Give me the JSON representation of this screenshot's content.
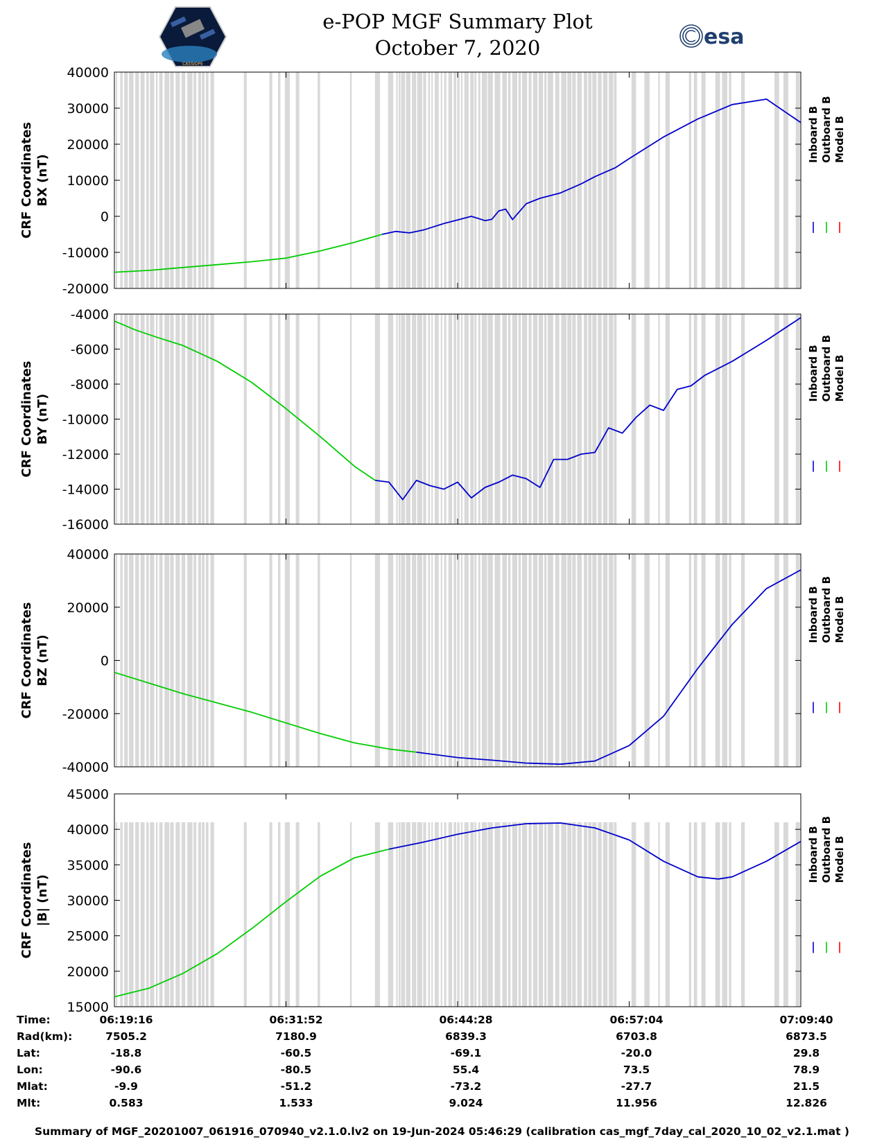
{
  "header": {
    "title_line1": "e-POP MGF Summary Plot",
    "title_line2": "October 7, 2020",
    "left_logo_text": "CASSIOPE",
    "right_logo_text": "esa"
  },
  "colors": {
    "inboard": "#0000cc",
    "outboard": "#00cc00",
    "model": "#ff0000",
    "gap_band": "#d9d9d9"
  },
  "chart_data": [
    {
      "type": "line",
      "ylabel_line1": "CRF Coordinates",
      "ylabel_line2": "BX (nT)",
      "ylim": [
        -20000,
        40000
      ],
      "yticks": [
        40000,
        30000,
        20000,
        10000,
        0,
        -10000,
        -20000
      ],
      "ytick_labels": [
        "40000",
        "30000",
        "20000",
        "10000",
        "0",
        "-10000",
        "-20000"
      ],
      "legend": [
        "Inboard B",
        "Outboard B",
        "Model B"
      ],
      "series": [
        {
          "name": "Outboard B",
          "color": "outboard",
          "t": [
            0,
            0.05,
            0.1,
            0.15,
            0.2,
            0.25,
            0.3,
            0.35,
            0.39
          ],
          "values": [
            -15500,
            -15000,
            -14200,
            -13400,
            -12600,
            -11600,
            -9600,
            -7200,
            -5000
          ]
        },
        {
          "name": "Inboard B",
          "color": "inboard",
          "t": [
            0.39,
            0.41,
            0.43,
            0.45,
            0.48,
            0.5,
            0.52,
            0.54,
            0.55,
            0.56,
            0.57,
            0.58,
            0.6,
            0.62,
            0.65,
            0.68,
            0.7,
            0.73,
            0.75,
            0.8,
            0.85,
            0.9,
            0.95,
            1.0
          ],
          "values": [
            -5000,
            -4200,
            -4600,
            -3800,
            -2000,
            -1000,
            0,
            -1200,
            -800,
            1500,
            2000,
            -900,
            3500,
            5000,
            6500,
            9000,
            11000,
            13500,
            16000,
            22000,
            27000,
            31000,
            32500,
            26000
          ]
        }
      ]
    },
    {
      "type": "line",
      "ylabel_line1": "CRF Coordinates",
      "ylabel_line2": "BY (nT)",
      "ylim": [
        -16000,
        -4000
      ],
      "yticks": [
        -4000,
        -6000,
        -8000,
        -10000,
        -12000,
        -14000,
        -16000
      ],
      "ytick_labels": [
        "-4000",
        "-6000",
        "-8000",
        "-10000",
        "-12000",
        "-14000",
        "-16000"
      ],
      "legend": [
        "Inboard B",
        "Outboard B",
        "Model B"
      ],
      "series": [
        {
          "name": "Outboard B",
          "color": "outboard",
          "t": [
            0,
            0.03,
            0.06,
            0.1,
            0.15,
            0.2,
            0.25,
            0.3,
            0.35,
            0.38
          ],
          "values": [
            -4400,
            -4900,
            -5300,
            -5800,
            -6700,
            -7900,
            -9400,
            -11000,
            -12700,
            -13500
          ]
        },
        {
          "name": "Inboard B",
          "color": "inboard",
          "t": [
            0.38,
            0.4,
            0.42,
            0.44,
            0.46,
            0.48,
            0.5,
            0.52,
            0.54,
            0.56,
            0.58,
            0.6,
            0.62,
            0.64,
            0.66,
            0.68,
            0.7,
            0.72,
            0.74,
            0.76,
            0.78,
            0.8,
            0.82,
            0.84,
            0.86,
            0.9,
            0.95,
            1.0
          ],
          "values": [
            -13500,
            -13600,
            -14600,
            -13500,
            -13800,
            -14000,
            -13600,
            -14500,
            -13900,
            -13600,
            -13200,
            -13400,
            -13900,
            -12300,
            -12300,
            -12000,
            -11900,
            -10500,
            -10800,
            -9900,
            -9200,
            -9500,
            -8300,
            -8100,
            -7500,
            -6700,
            -5500,
            -4200
          ]
        }
      ]
    },
    {
      "type": "line",
      "ylabel_line1": "CRF Coordinates",
      "ylabel_line2": "BZ (nT)",
      "ylim": [
        -40000,
        40000
      ],
      "yticks": [
        40000,
        20000,
        0,
        -20000,
        -40000
      ],
      "ytick_labels": [
        "40000",
        "20000",
        "0",
        "-20000",
        "-40000"
      ],
      "legend": [
        "Inboard B",
        "Outboard B",
        "Model B"
      ],
      "series": [
        {
          "name": "Outboard B",
          "color": "outboard",
          "t": [
            0,
            0.05,
            0.1,
            0.15,
            0.2,
            0.25,
            0.3,
            0.35,
            0.4,
            0.44
          ],
          "values": [
            -4500,
            -8500,
            -12500,
            -16000,
            -19500,
            -23500,
            -27500,
            -31000,
            -33300,
            -34500
          ]
        },
        {
          "name": "Inboard B",
          "color": "inboard",
          "t": [
            0.44,
            0.5,
            0.55,
            0.6,
            0.65,
            0.7,
            0.75,
            0.8,
            0.85,
            0.9,
            0.95,
            1.0
          ],
          "values": [
            -34500,
            -36500,
            -37500,
            -38600,
            -39000,
            -37800,
            -32000,
            -21000,
            -3000,
            13500,
            27000,
            34000
          ]
        }
      ]
    },
    {
      "type": "line",
      "ylabel_line1": "CRF Coordinates",
      "ylabel_line2": "|B| (nT)",
      "ylim": [
        15000,
        45000
      ],
      "yticks": [
        45000,
        40000,
        35000,
        30000,
        25000,
        20000,
        15000
      ],
      "ytick_labels": [
        "45000",
        "40000",
        "35000",
        "30000",
        "25000",
        "20000",
        "15000"
      ],
      "legend": [
        "Inboard B",
        "Outboard B",
        "Model B"
      ],
      "series": [
        {
          "name": "Outboard B",
          "color": "outboard",
          "t": [
            0,
            0.05,
            0.1,
            0.15,
            0.2,
            0.25,
            0.3,
            0.35,
            0.4
          ],
          "values": [
            16400,
            17600,
            19700,
            22500,
            26000,
            29800,
            33400,
            36000,
            37200
          ]
        },
        {
          "name": "Inboard B",
          "color": "inboard",
          "t": [
            0.4,
            0.45,
            0.5,
            0.55,
            0.6,
            0.65,
            0.7,
            0.75,
            0.8,
            0.85,
            0.88,
            0.9,
            0.95,
            1.0
          ],
          "values": [
            37200,
            38200,
            39300,
            40200,
            40800,
            40900,
            40200,
            38500,
            35500,
            33300,
            33000,
            33300,
            35500,
            38300
          ]
        }
      ]
    }
  ],
  "footer": {
    "labels": [
      "Time:",
      "Rad(km):",
      "Lat:",
      "Lon:",
      "Mlat:",
      "Mlt:"
    ],
    "columns": [
      [
        "06:19:16",
        "7505.2",
        "-18.8",
        "-90.6",
        "-9.9",
        "0.583"
      ],
      [
        "06:31:52",
        "7180.9",
        "-60.5",
        "-80.5",
        "-51.2",
        "1.533"
      ],
      [
        "06:44:28",
        "6839.3",
        "-69.1",
        "55.4",
        "-73.2",
        "9.024"
      ],
      [
        "06:57:04",
        "6703.8",
        "-20.0",
        "73.5",
        "-27.7",
        "11.956"
      ],
      [
        "07:09:40",
        "6873.5",
        "29.8",
        "78.9",
        "21.5",
        "12.826"
      ]
    ],
    "caption": "Summary of MGF_20201007_061916_070940_v2.1.0.lv2 on 19-Jun-2024 05:46:29 (calibration cas_mgf_7day_cal_2020_10_02_v2.1.mat )"
  }
}
